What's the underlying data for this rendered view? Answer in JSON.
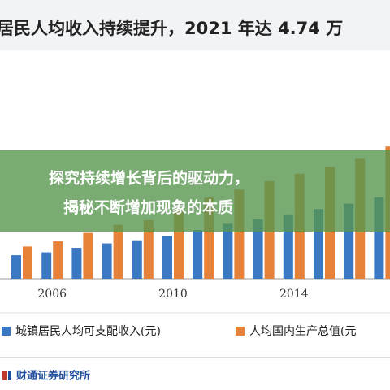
{
  "chart_data": {
    "type": "bar",
    "title": "居民人均收入持续提升，2021 年达 4.74 万",
    "categories": [
      null,
      "2006",
      null,
      null,
      null,
      "2010",
      null,
      null,
      null,
      "2014",
      null,
      null,
      null
    ],
    "series": [
      {
        "name": "城镇居民人均可支配收入(元)",
        "color": "#3a78c3",
        "values": [
          10500,
          11800,
          13800,
          15800,
          17200,
          19100,
          21800,
          24600,
          26500,
          28800,
          31200,
          33600,
          36400
        ]
      },
      {
        "name": "人均国内生产总值(元",
        "color": "#e8813a",
        "values": [
          14400,
          16700,
          20500,
          24100,
          26200,
          30800,
          36300,
          39900,
          43700,
          47000,
          50000,
          53700,
          59200
        ]
      }
    ],
    "ylim": [
      0,
      100000
    ],
    "overlay": [
      "探究持续增长背后的驱动力，",
      "揭秘不断增加现象的本质"
    ],
    "source": "财通证券研究所"
  }
}
